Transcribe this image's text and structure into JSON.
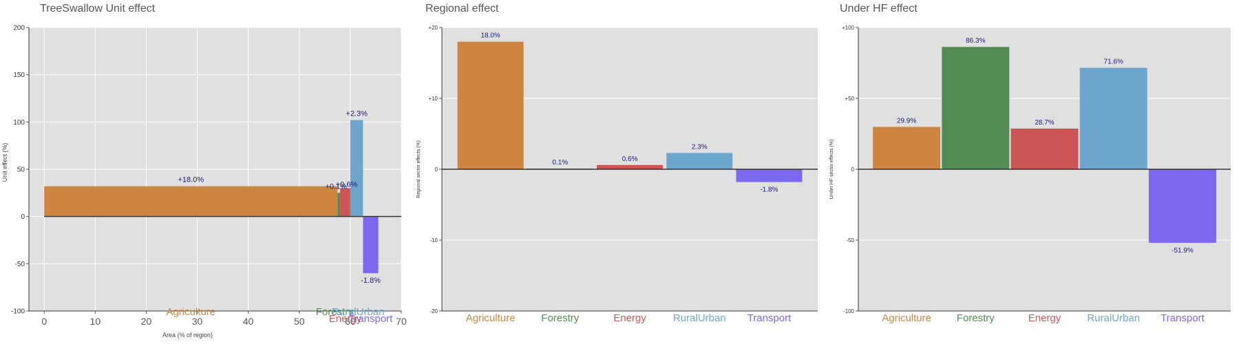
{
  "chart_data": [
    {
      "type": "bar",
      "title": "TreeSwallow Unit effect",
      "xlabel": "Area (% of region)",
      "ylabel": "Unit effect (%)",
      "xlim": [
        -3,
        70
      ],
      "ylim": [
        -100,
        200
      ],
      "x_ticks": [
        "0",
        "10",
        "20",
        "30",
        "40",
        "50",
        "60",
        "70"
      ],
      "y_ticks": [
        "200",
        "150",
        "100",
        "50",
        "0",
        "-50",
        "-100"
      ],
      "grid": true,
      "bars": [
        {
          "category": "Agriculture",
          "x_start": 0.0,
          "x_end": 57.5,
          "value": 32,
          "label": "+18.0%",
          "color": "#cd853f"
        },
        {
          "category": "Forestry",
          "x_start": 57.5,
          "x_end": 58.0,
          "value": 25,
          "label": "+0.1%",
          "color": "#548b54"
        },
        {
          "category": "Energy",
          "x_start": 58.0,
          "x_end": 60.0,
          "value": 30,
          "label": "+0.6%",
          "color": "#cd5555"
        },
        {
          "category": "RuralUrban",
          "x_start": 60.0,
          "x_end": 62.5,
          "value": 102,
          "label": "+2.3%",
          "color": "#6ca6cd"
        },
        {
          "category": "Transport",
          "x_start": 62.5,
          "x_end": 65.5,
          "value": -60,
          "label": "-1.8%",
          "color": "#7b68ee"
        }
      ]
    },
    {
      "type": "bar",
      "title": "Regional effect",
      "ylabel": "Regional sector effects (%)",
      "ylim": [
        -20,
        20
      ],
      "y_ticks": [
        "+20",
        "+10",
        "0",
        "-10",
        "-20"
      ],
      "grid": true,
      "categories": [
        "Agriculture",
        "Forestry",
        "Energy",
        "RuralUrban",
        "Transport"
      ],
      "values": [
        18.0,
        0.1,
        0.6,
        2.3,
        -1.8
      ],
      "labels": [
        "18.0%",
        "0.1%",
        "0.6%",
        "2.3%",
        "-1.8%"
      ],
      "colors": [
        "#cd853f",
        "#548b54",
        "#cd5555",
        "#6ca6cd",
        "#7b68ee"
      ]
    },
    {
      "type": "bar",
      "title": "Under HF effect",
      "ylabel": "Under HF sector effects (%)",
      "ylim": [
        -100,
        100
      ],
      "y_ticks": [
        "+100",
        "+50",
        "0",
        "-50",
        "-100"
      ],
      "grid": true,
      "categories": [
        "Agriculture",
        "Forestry",
        "Energy",
        "RuralUrban",
        "Transport"
      ],
      "values": [
        29.9,
        86.3,
        28.7,
        71.6,
        -51.9
      ],
      "labels": [
        "29.9%",
        "86.3%",
        "28.7%",
        "71.6%",
        "-51.9%"
      ],
      "colors": [
        "#cd853f",
        "#548b54",
        "#cd5555",
        "#6ca6cd",
        "#7b68ee"
      ]
    }
  ]
}
